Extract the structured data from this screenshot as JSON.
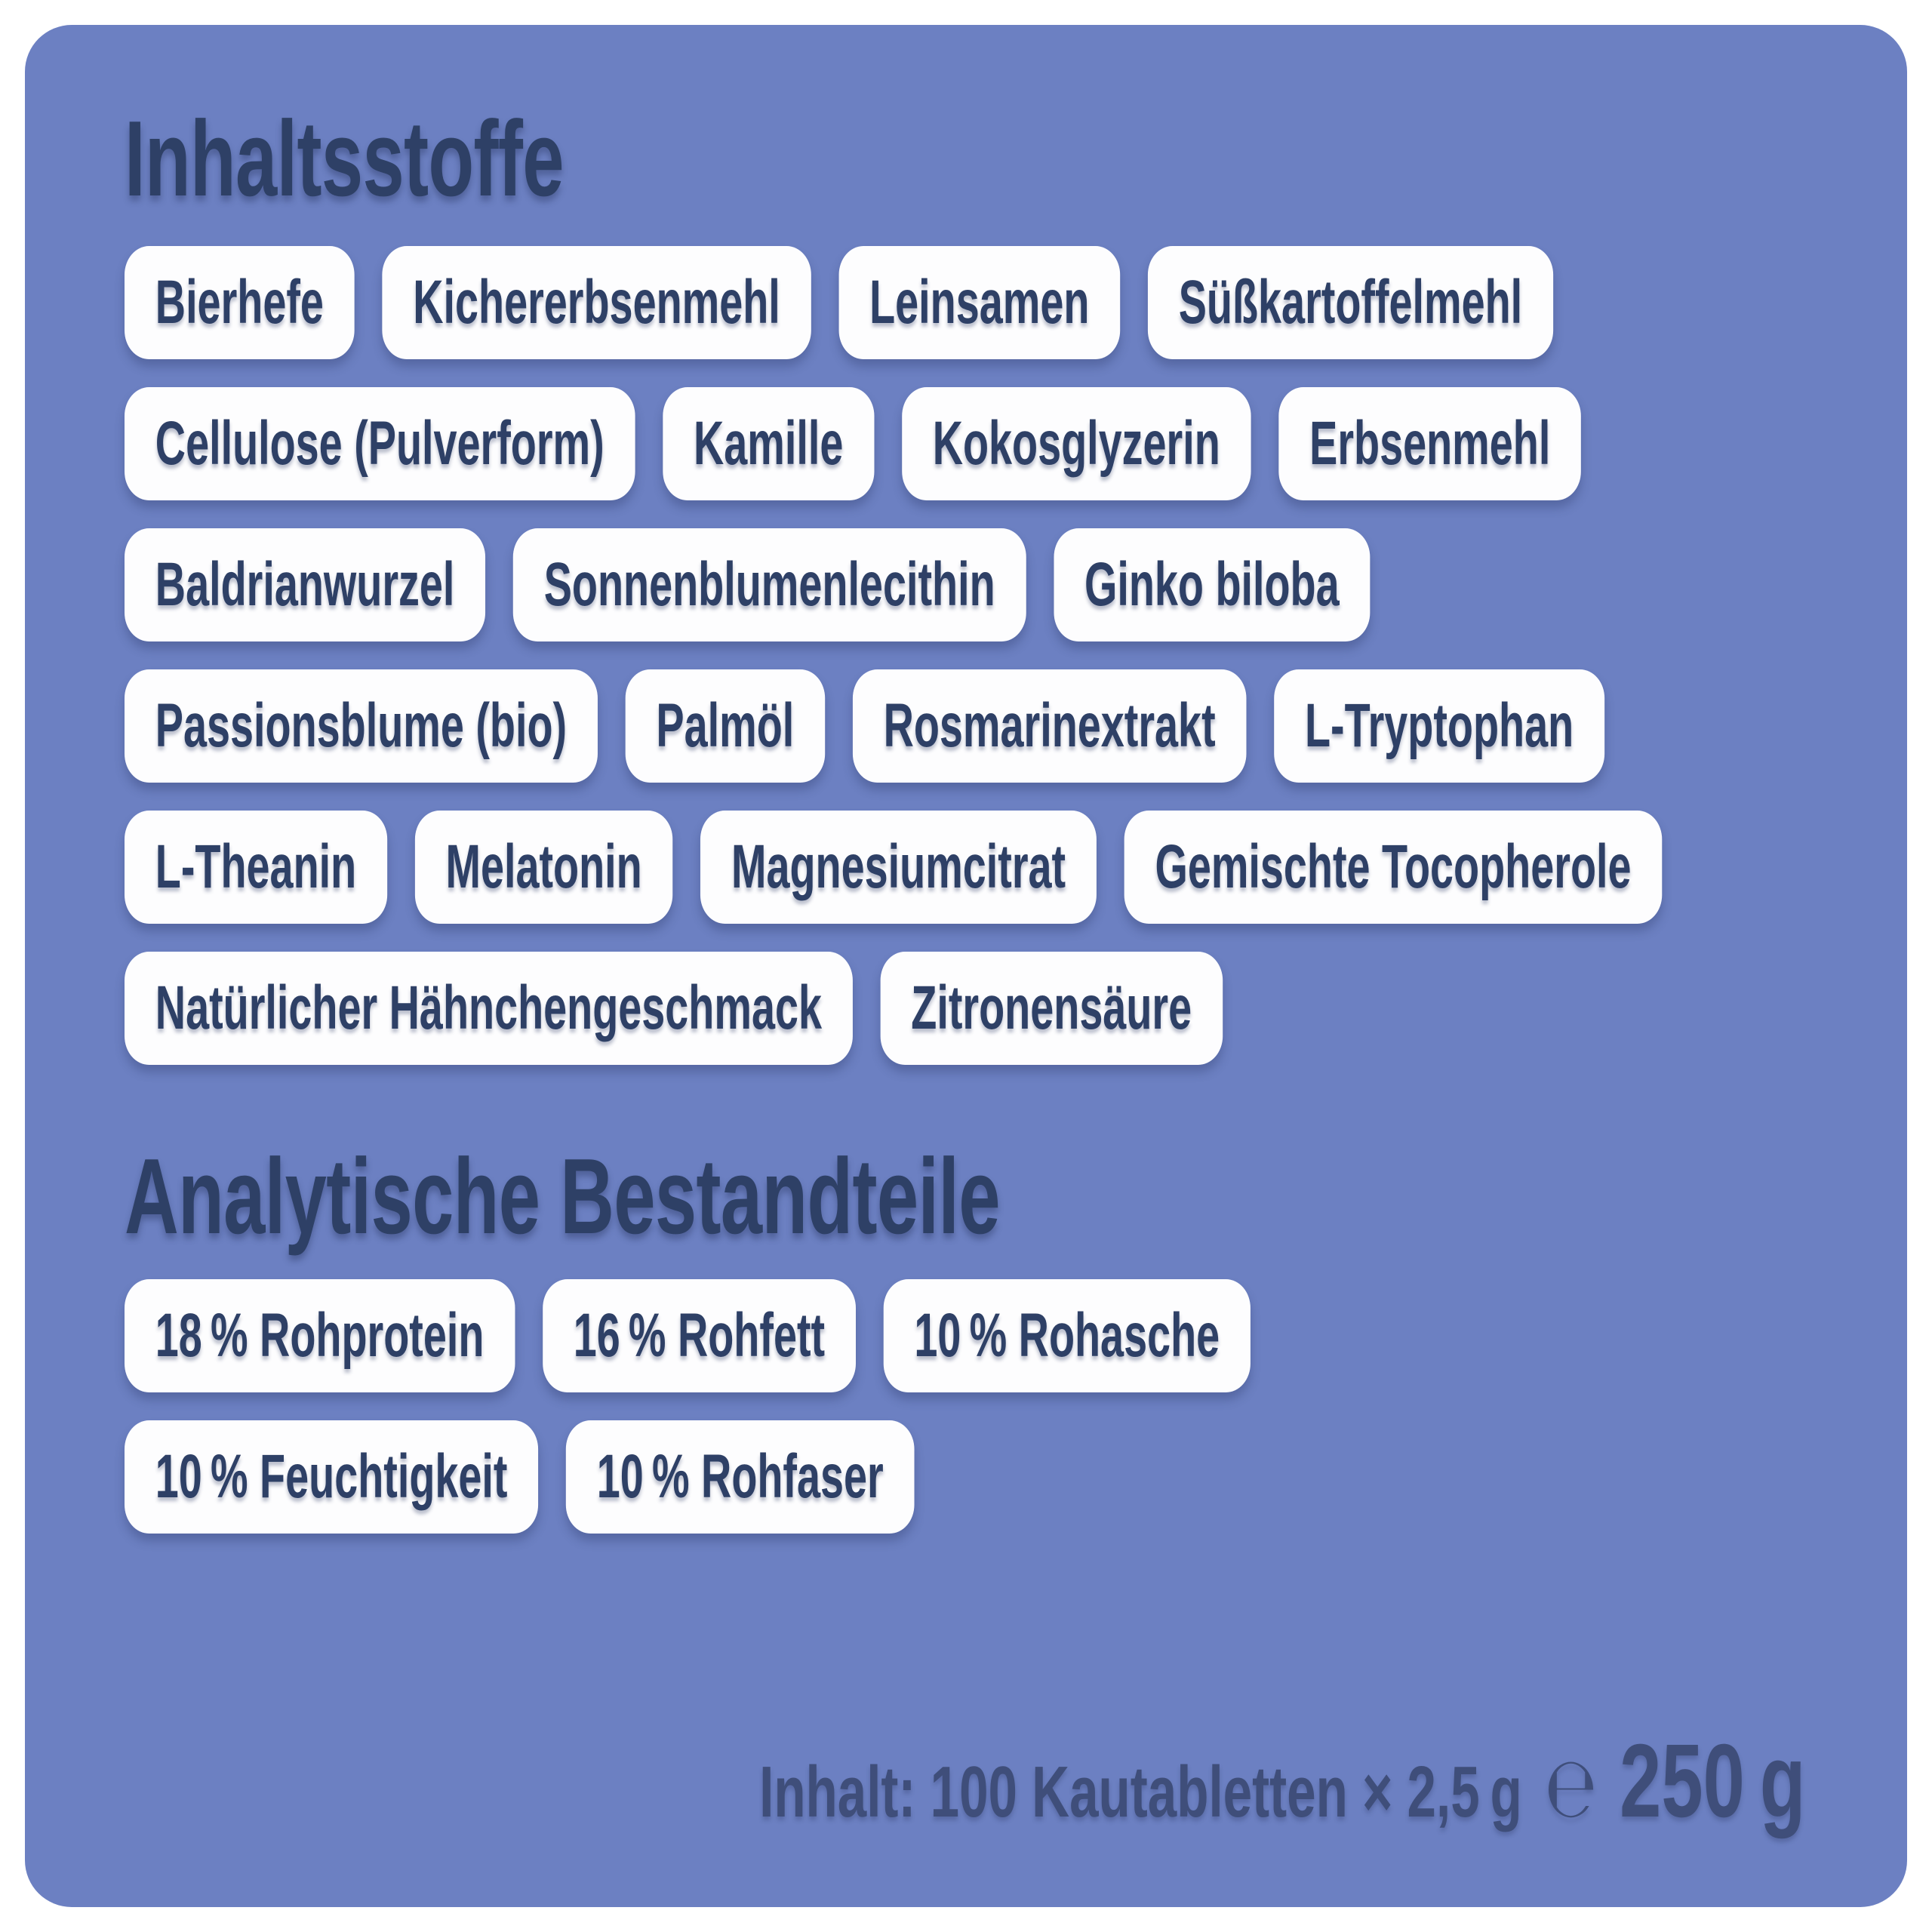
{
  "label": {
    "colors": {
      "page_background": "#ffffff",
      "panel_background": "#6c80c2",
      "heading_text": "#2e4066",
      "pill_background": "#fdfdfe",
      "pill_text": "#2e4066",
      "footer_text": "#3f4e7a"
    },
    "sections": [
      {
        "id": "inhaltsstoffe",
        "title": "Inhaltsstoffe",
        "rows": [
          [
            "Bierhefe",
            "Kichererbsenmehl",
            "Leinsamen",
            "Süßkartoffelmehl"
          ],
          [
            "Cellulose (Pulverform)",
            "Kamille",
            "Kokosglyzerin",
            "Erbsenmehl"
          ],
          [
            "Baldrianwurzel",
            "Sonnenblumenlecithin",
            "Ginko biloba"
          ],
          [
            "Passionsblume (bio)",
            "Palmöl",
            "Rosmarinextrakt",
            "L-Tryptophan"
          ],
          [
            "L-Theanin",
            "Melatonin",
            "Magnesiumcitrat",
            "Gemischte Tocopherole"
          ],
          [
            "Natürlicher Hähnchengeschmack",
            "Zitronensäure"
          ]
        ]
      },
      {
        "id": "analytische-bestandteile",
        "title": "Analytische Bestandteile",
        "rows": [
          [
            "18 % Rohprotein",
            "16 % Rohfett",
            "10 % Rohasche"
          ],
          [
            "10 % Feuchtigkeit",
            "10 % Rohfaser"
          ]
        ]
      }
    ],
    "content_line": {
      "text": "Inhalt: 100 Kautabletten × 2,5 g",
      "estimated_sign": "℮",
      "net_weight": "250 g"
    }
  }
}
